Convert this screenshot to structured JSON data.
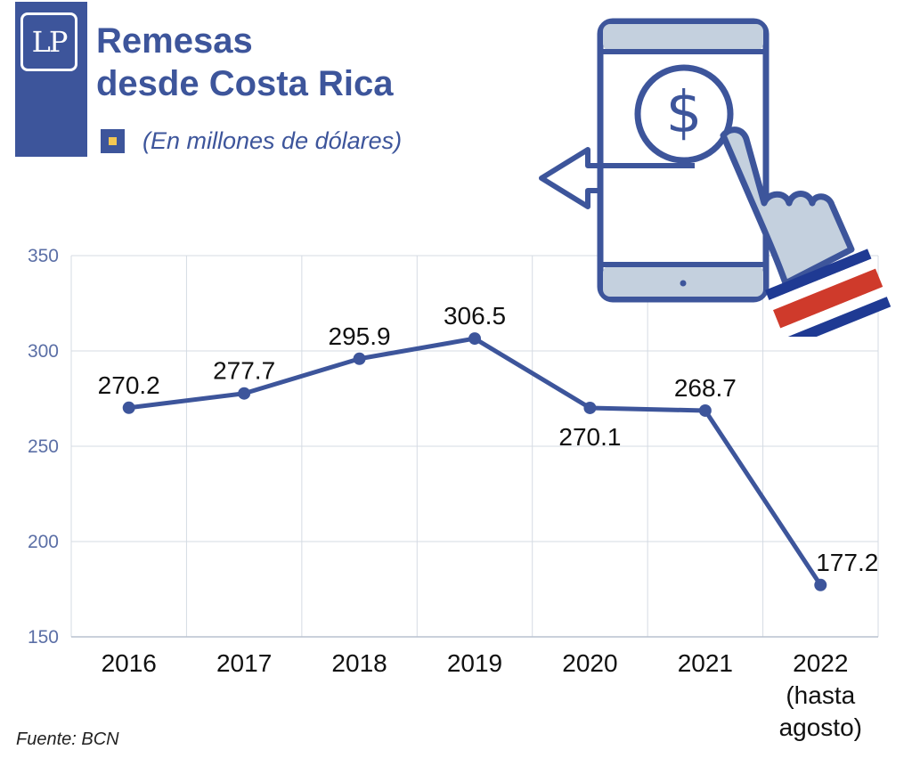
{
  "header": {
    "logo_text": "LP",
    "title_line1": "Remesas",
    "title_line2": "desde Costa Rica",
    "subtitle": "(En millones de dólares)"
  },
  "footer": {
    "source": "Fuente: BCN"
  },
  "colors": {
    "brand": "#3d559b",
    "marker_accent": "#f3c753",
    "grid": "#d5dbe3",
    "flag_red": "#cf3a2b"
  },
  "illustration": {
    "icons": [
      "smartphone-icon",
      "dollar-icon",
      "hand-pointer-icon",
      "arrow-left-icon"
    ]
  },
  "chart_data": {
    "type": "line",
    "categories": [
      "2016",
      "2017",
      "2018",
      "2019",
      "2020",
      "2021",
      "2022 (hasta agosto)"
    ],
    "category_lines": [
      [
        "2016"
      ],
      [
        "2017"
      ],
      [
        "2018"
      ],
      [
        "2019"
      ],
      [
        "2020"
      ],
      [
        "2021"
      ],
      [
        "2022",
        "(hasta",
        "agosto)"
      ]
    ],
    "series": [
      {
        "values": [
          270.2,
          277.7,
          295.9,
          306.5,
          270.1,
          268.7,
          177.2
        ]
      }
    ],
    "data_labels": [
      "270.2",
      "277.7",
      "295.9",
      "306.5",
      "270.1",
      "268.7",
      "177.2"
    ],
    "label_positions": [
      "above",
      "above",
      "above",
      "above",
      "below",
      "above",
      "above"
    ],
    "ylim": [
      150,
      350
    ],
    "yticks": [
      150,
      200,
      250,
      300,
      350
    ],
    "grid": true,
    "legend": "none"
  }
}
